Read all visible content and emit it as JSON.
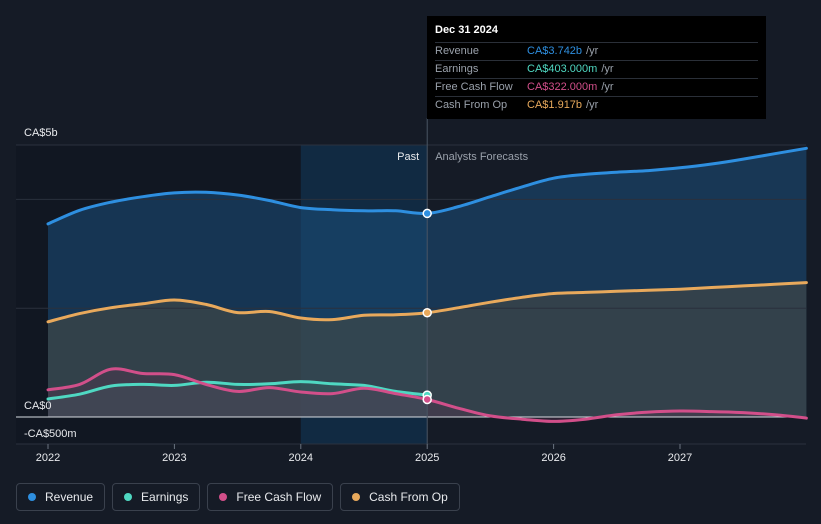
{
  "chart_data": {
    "type": "area",
    "y_unit_labels": {
      "top": "CA$5b",
      "zero": "CA$0",
      "bottom": "-CA$500m"
    },
    "ylim": [
      -500,
      5000
    ],
    "x_ticks": [
      "2022",
      "2023",
      "2024",
      "2025",
      "2026",
      "2027"
    ],
    "x_tick_values": [
      2022,
      2023,
      2024,
      2025,
      2026,
      2027
    ],
    "xlim": [
      2021.75,
      2028.0
    ],
    "past_label": "Past",
    "forecast_label": "Analysts Forecasts",
    "divider_x": 2025.0,
    "highlight_start_x": 2024.0,
    "series": [
      {
        "name": "Revenue",
        "color": "#2e8fe0",
        "x": [
          2022.0,
          2022.25,
          2022.5,
          2022.75,
          2023.0,
          2023.25,
          2023.5,
          2023.75,
          2024.0,
          2024.25,
          2024.5,
          2024.75,
          2025.0,
          2025.25,
          2025.5,
          2025.75,
          2026.0,
          2026.25,
          2026.5,
          2026.75,
          2027.0,
          2027.25,
          2027.5,
          2027.75,
          2028.0
        ],
        "values": [
          3550,
          3800,
          3950,
          4050,
          4120,
          4130,
          4080,
          3980,
          3850,
          3810,
          3790,
          3790,
          3742,
          3870,
          4050,
          4230,
          4390,
          4460,
          4500,
          4530,
          4580,
          4650,
          4740,
          4840,
          4940
        ]
      },
      {
        "name": "Earnings",
        "color": "#4fd8c2",
        "x": [
          2022.0,
          2022.25,
          2022.5,
          2022.75,
          2023.0,
          2023.25,
          2023.5,
          2023.75,
          2024.0,
          2024.25,
          2024.5,
          2024.75,
          2025.0
        ],
        "values": [
          330,
          420,
          570,
          600,
          580,
          640,
          600,
          610,
          650,
          610,
          580,
          470,
          403
        ]
      },
      {
        "name": "Free Cash Flow",
        "color": "#d24f8a",
        "x": [
          2022.0,
          2022.25,
          2022.5,
          2022.75,
          2023.0,
          2023.25,
          2023.5,
          2023.75,
          2024.0,
          2024.25,
          2024.5,
          2024.75,
          2025.0,
          2025.25,
          2025.5,
          2025.75,
          2026.0,
          2026.25,
          2026.5,
          2026.75,
          2027.0,
          2027.25,
          2027.5,
          2027.75,
          2028.0
        ],
        "values": [
          500,
          600,
          880,
          800,
          780,
          600,
          470,
          540,
          460,
          430,
          530,
          430,
          322,
          160,
          20,
          -40,
          -80,
          -40,
          40,
          90,
          110,
          100,
          80,
          40,
          -20
        ]
      },
      {
        "name": "Cash From Op",
        "color": "#e8a95c",
        "x": [
          2022.0,
          2022.25,
          2022.5,
          2022.75,
          2023.0,
          2023.25,
          2023.5,
          2023.75,
          2024.0,
          2024.25,
          2024.5,
          2024.75,
          2025.0,
          2025.25,
          2025.5,
          2025.75,
          2026.0,
          2026.25,
          2026.5,
          2026.75,
          2027.0,
          2027.25,
          2027.5,
          2027.75,
          2028.0
        ],
        "values": [
          1750,
          1900,
          2010,
          2080,
          2150,
          2070,
          1920,
          1940,
          1820,
          1790,
          1870,
          1880,
          1917,
          2010,
          2110,
          2200,
          2270,
          2290,
          2310,
          2330,
          2350,
          2380,
          2410,
          2440,
          2470
        ]
      }
    ],
    "highlight_points": [
      {
        "series": "Revenue",
        "x": 2025.0,
        "value": 3742
      },
      {
        "series": "Cash From Op",
        "x": 2025.0,
        "value": 1917
      },
      {
        "series": "Earnings",
        "x": 2025.0,
        "value": 403
      },
      {
        "series": "Free Cash Flow",
        "x": 2025.0,
        "value": 322
      }
    ]
  },
  "tooltip": {
    "date": "Dec 31 2024",
    "rows": [
      {
        "label": "Revenue",
        "value": "CA$3.742b",
        "unit": "/yr",
        "color": "#2e8fe0"
      },
      {
        "label": "Earnings",
        "value": "CA$403.000m",
        "unit": "/yr",
        "color": "#4fd8c2"
      },
      {
        "label": "Free Cash Flow",
        "value": "CA$322.000m",
        "unit": "/yr",
        "color": "#d24f8a"
      },
      {
        "label": "Cash From Op",
        "value": "CA$1.917b",
        "unit": "/yr",
        "color": "#e8a95c"
      }
    ]
  },
  "legend": [
    {
      "label": "Revenue",
      "color": "#2e8fe0"
    },
    {
      "label": "Earnings",
      "color": "#4fd8c2"
    },
    {
      "label": "Free Cash Flow",
      "color": "#d24f8a"
    },
    {
      "label": "Cash From Op",
      "color": "#e8a95c"
    }
  ]
}
